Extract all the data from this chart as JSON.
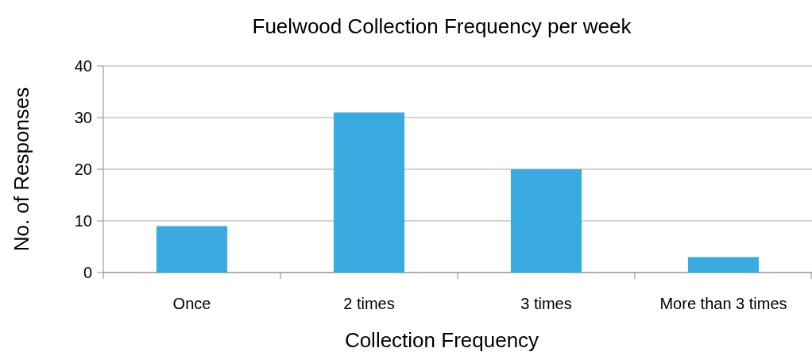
{
  "chart_data": {
    "type": "bar",
    "title": "Fuelwood Collection Frequency per week",
    "xlabel": "Collection Frequency",
    "ylabel": "No. of Responses",
    "categories": [
      "Once",
      "2 times",
      "3 times",
      "More than 3 times"
    ],
    "values": [
      9,
      31,
      20,
      3
    ],
    "color": "#3aabe0",
    "ylim": [
      0,
      40
    ],
    "yticks": [
      0,
      10,
      20,
      30,
      40
    ],
    "grid": "y"
  }
}
